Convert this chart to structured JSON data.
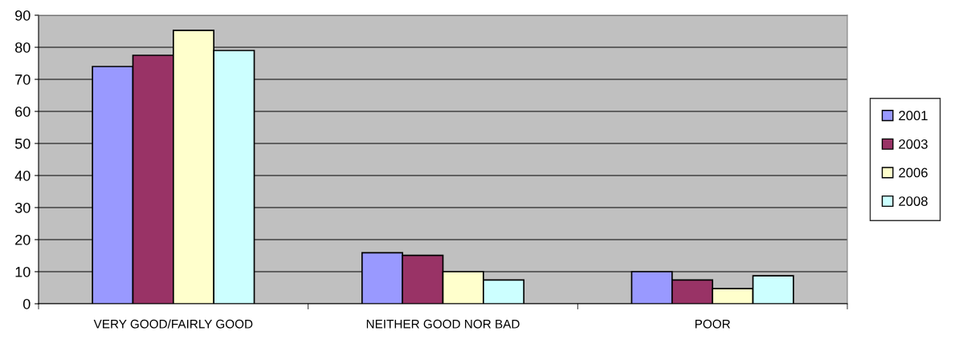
{
  "chart_data": {
    "type": "bar",
    "categories": [
      "VERY GOOD/FAIRLY GOOD",
      "NEITHER GOOD NOR BAD",
      "POOR"
    ],
    "series": [
      {
        "name": "2001",
        "color": "#9999ff",
        "values": [
          74,
          15.9,
          10
        ]
      },
      {
        "name": "2003",
        "color": "#993366",
        "values": [
          77.5,
          15.1,
          7.4
        ]
      },
      {
        "name": "2006",
        "color": "#ffffcc",
        "values": [
          85.3,
          10,
          4.7
        ]
      },
      {
        "name": "2008",
        "color": "#ccffff",
        "values": [
          79,
          7.4,
          8.7
        ]
      }
    ],
    "ylim": [
      0,
      90
    ],
    "yticks": [
      0,
      10,
      20,
      30,
      40,
      50,
      60,
      70,
      80,
      90
    ],
    "grid": "y",
    "legend": "right"
  }
}
